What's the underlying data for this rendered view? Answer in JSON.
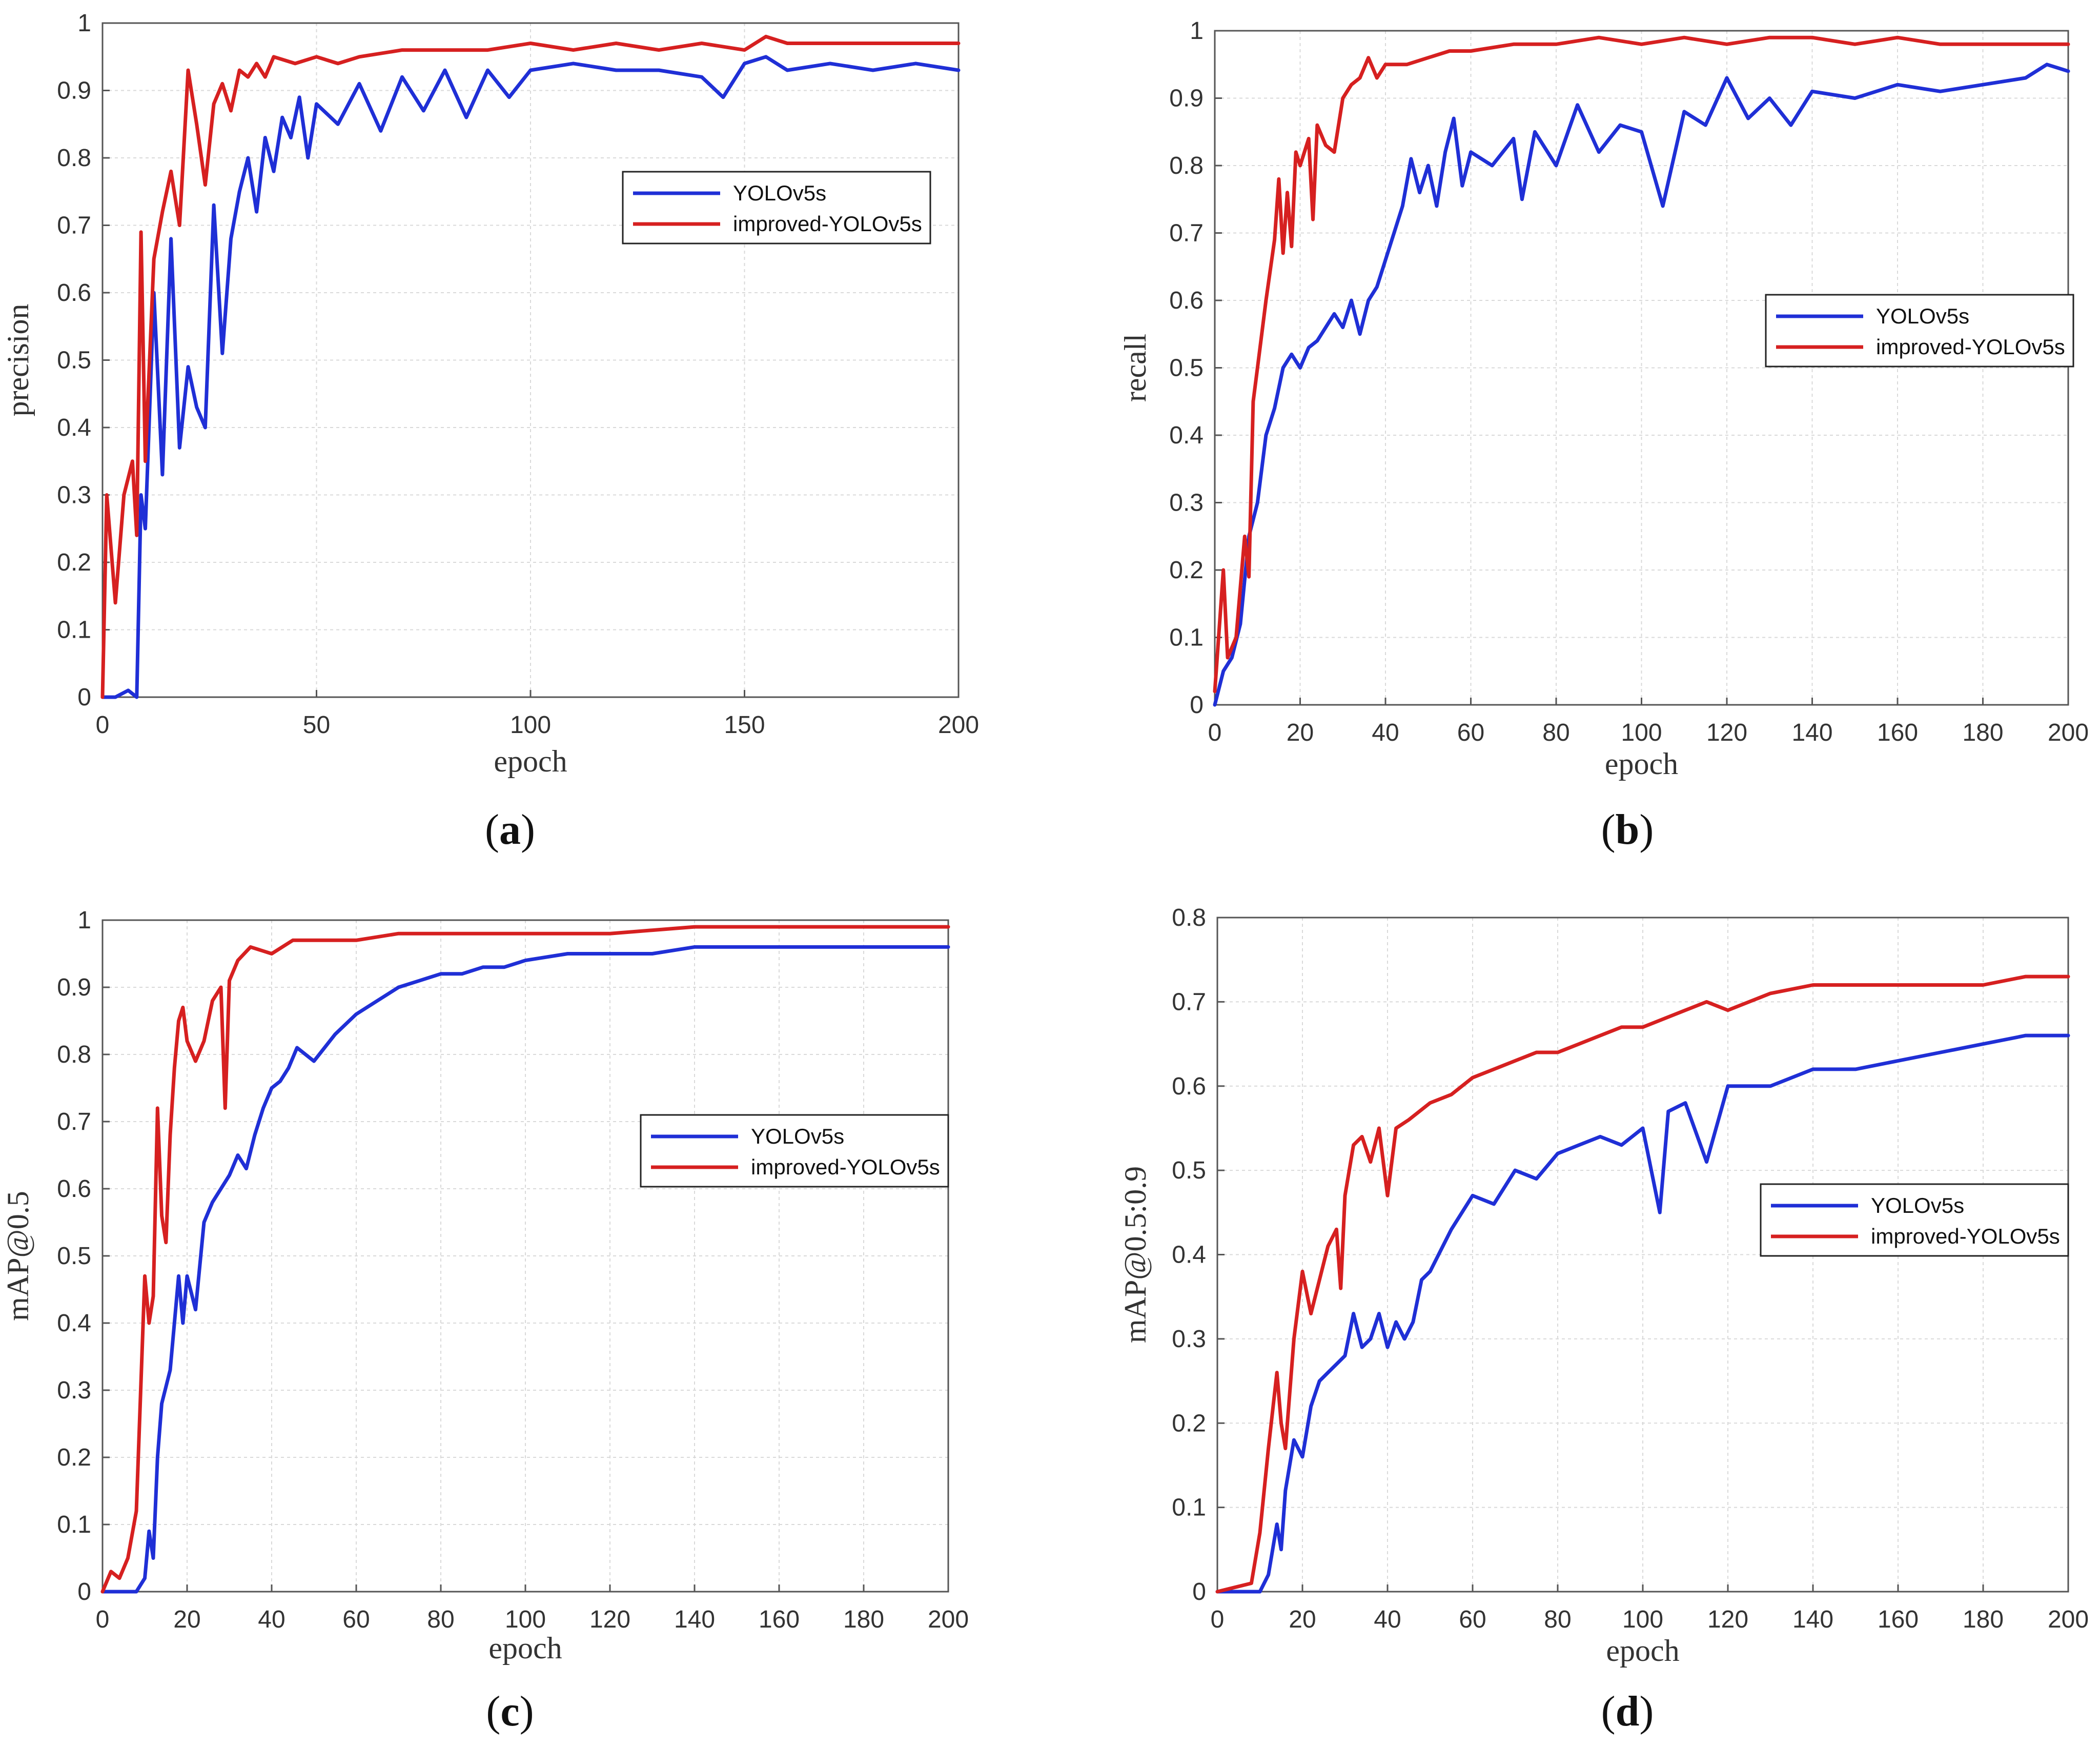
{
  "colors": {
    "yolov5s": "#1f2fd6",
    "improved": "#d62020",
    "grid": "#d9d9d9",
    "axis": "#555555"
  },
  "chart_data": [
    {
      "type": "line",
      "panel": "a",
      "caption": {
        "open": "(",
        "letter": "a",
        "close": ")"
      },
      "xlabel": "epoch",
      "ylabel": "precision",
      "xlim": [
        0,
        200
      ],
      "ylim": [
        0,
        1
      ],
      "xticks": [
        0,
        50,
        100,
        150,
        200
      ],
      "yticks": [
        0,
        0.1,
        0.2,
        0.3,
        0.4,
        0.5,
        0.6,
        0.7,
        0.8,
        0.9,
        1
      ],
      "ytick_labels": [
        "0",
        "0.1",
        "0.2",
        "0.3",
        "0.4",
        "0.5",
        "0.6",
        "0.7",
        "0.8",
        "0.9",
        "1"
      ],
      "legend_position": "middle-right",
      "series": [
        {
          "name": "YOLOv5s",
          "color_key": "yolov5s",
          "x": [
            0,
            3,
            6,
            8,
            9,
            10,
            12,
            14,
            16,
            18,
            20,
            22,
            24,
            26,
            28,
            30,
            32,
            34,
            36,
            38,
            40,
            42,
            44,
            46,
            48,
            50,
            55,
            60,
            65,
            70,
            75,
            80,
            85,
            90,
            95,
            100,
            110,
            120,
            130,
            140,
            145,
            150,
            155,
            160,
            170,
            180,
            190,
            200
          ],
          "values": [
            0,
            0,
            0.01,
            0,
            0.3,
            0.25,
            0.6,
            0.33,
            0.68,
            0.37,
            0.49,
            0.43,
            0.4,
            0.73,
            0.51,
            0.68,
            0.75,
            0.8,
            0.72,
            0.83,
            0.78,
            0.86,
            0.83,
            0.89,
            0.8,
            0.88,
            0.85,
            0.91,
            0.84,
            0.92,
            0.87,
            0.93,
            0.86,
            0.93,
            0.89,
            0.93,
            0.94,
            0.93,
            0.93,
            0.92,
            0.89,
            0.94,
            0.95,
            0.93,
            0.94,
            0.93,
            0.94,
            0.93
          ]
        },
        {
          "name": "improved-YOLOv5s",
          "color_key": "improved",
          "x": [
            0,
            1,
            3,
            5,
            7,
            8,
            9,
            10,
            12,
            14,
            16,
            18,
            20,
            22,
            24,
            26,
            28,
            30,
            32,
            34,
            36,
            38,
            40,
            45,
            50,
            55,
            60,
            70,
            80,
            90,
            100,
            110,
            120,
            130,
            140,
            150,
            155,
            160,
            170,
            180,
            190,
            200
          ],
          "values": [
            0,
            0.3,
            0.14,
            0.3,
            0.35,
            0.24,
            0.69,
            0.35,
            0.65,
            0.72,
            0.78,
            0.7,
            0.93,
            0.85,
            0.76,
            0.88,
            0.91,
            0.87,
            0.93,
            0.92,
            0.94,
            0.92,
            0.95,
            0.94,
            0.95,
            0.94,
            0.95,
            0.96,
            0.96,
            0.96,
            0.97,
            0.96,
            0.97,
            0.96,
            0.97,
            0.96,
            0.98,
            0.97,
            0.97,
            0.97,
            0.97,
            0.97
          ]
        }
      ]
    },
    {
      "type": "line",
      "panel": "b",
      "caption": {
        "open": "(",
        "letter": "b",
        "close": ")"
      },
      "xlabel": "epoch",
      "ylabel": "recall",
      "xlim": [
        0,
        200
      ],
      "ylim": [
        0,
        1
      ],
      "xticks": [
        0,
        20,
        40,
        60,
        80,
        100,
        120,
        140,
        160,
        180,
        200
      ],
      "yticks": [
        0,
        0.1,
        0.2,
        0.3,
        0.4,
        0.5,
        0.6,
        0.7,
        0.8,
        0.9,
        1
      ],
      "ytick_labels": [
        "0",
        "0.1",
        "0.2",
        "0.3",
        "0.4",
        "0.5",
        "0.6",
        "0.7",
        "0.8",
        "0.9",
        "1"
      ],
      "legend_position": "middle-right",
      "series": [
        {
          "name": "YOLOv5s",
          "color_key": "yolov5s",
          "x": [
            0,
            2,
            4,
            6,
            8,
            10,
            12,
            14,
            16,
            18,
            20,
            22,
            24,
            26,
            28,
            30,
            32,
            34,
            36,
            38,
            40,
            42,
            44,
            46,
            48,
            50,
            52,
            54,
            56,
            58,
            60,
            65,
            70,
            72,
            75,
            80,
            85,
            90,
            95,
            100,
            105,
            110,
            115,
            120,
            125,
            130,
            135,
            140,
            150,
            160,
            170,
            180,
            190,
            195,
            200
          ],
          "values": [
            0,
            0.05,
            0.07,
            0.12,
            0.25,
            0.3,
            0.4,
            0.44,
            0.5,
            0.52,
            0.5,
            0.53,
            0.54,
            0.56,
            0.58,
            0.56,
            0.6,
            0.55,
            0.6,
            0.62,
            0.66,
            0.7,
            0.74,
            0.81,
            0.76,
            0.8,
            0.74,
            0.82,
            0.87,
            0.77,
            0.82,
            0.8,
            0.84,
            0.75,
            0.85,
            0.8,
            0.89,
            0.82,
            0.86,
            0.85,
            0.74,
            0.88,
            0.86,
            0.93,
            0.87,
            0.9,
            0.86,
            0.91,
            0.9,
            0.92,
            0.91,
            0.92,
            0.93,
            0.95,
            0.94
          ]
        },
        {
          "name": "improved-YOLOv5s",
          "color_key": "improved",
          "x": [
            0,
            2,
            3,
            5,
            7,
            8,
            9,
            10,
            12,
            14,
            15,
            16,
            17,
            18,
            19,
            20,
            22,
            23,
            24,
            26,
            28,
            30,
            32,
            34,
            36,
            38,
            40,
            45,
            50,
            55,
            60,
            70,
            80,
            90,
            100,
            110,
            120,
            130,
            140,
            150,
            160,
            170,
            180,
            190,
            200
          ],
          "values": [
            0.02,
            0.2,
            0.07,
            0.1,
            0.25,
            0.19,
            0.45,
            0.5,
            0.6,
            0.69,
            0.78,
            0.67,
            0.76,
            0.68,
            0.82,
            0.8,
            0.84,
            0.72,
            0.86,
            0.83,
            0.82,
            0.9,
            0.92,
            0.93,
            0.96,
            0.93,
            0.95,
            0.95,
            0.96,
            0.97,
            0.97,
            0.98,
            0.98,
            0.99,
            0.98,
            0.99,
            0.98,
            0.99,
            0.99,
            0.98,
            0.99,
            0.98,
            0.98,
            0.98,
            0.98
          ]
        }
      ]
    },
    {
      "type": "line",
      "panel": "c",
      "caption": {
        "open": "(",
        "letter": "c",
        "close": ")"
      },
      "xlabel": "epoch",
      "ylabel": "mAP@0.5",
      "xlim": [
        0,
        200
      ],
      "ylim": [
        0,
        1
      ],
      "xticks": [
        0,
        20,
        40,
        60,
        80,
        100,
        120,
        140,
        160,
        180,
        200
      ],
      "yticks": [
        0,
        0.1,
        0.2,
        0.3,
        0.4,
        0.5,
        0.6,
        0.7,
        0.8,
        0.9,
        1
      ],
      "ytick_labels": [
        "0",
        "0.1",
        "0.2",
        "0.3",
        "0.4",
        "0.5",
        "0.6",
        "0.7",
        "0.8",
        "0.9",
        "1"
      ],
      "legend_position": "middle-right",
      "series": [
        {
          "name": "YOLOv5s",
          "color_key": "yolov5s",
          "x": [
            0,
            8,
            10,
            11,
            12,
            13,
            14,
            16,
            18,
            19,
            20,
            22,
            24,
            26,
            28,
            30,
            32,
            34,
            36,
            38,
            40,
            42,
            44,
            46,
            50,
            55,
            60,
            65,
            70,
            75,
            80,
            85,
            90,
            95,
            100,
            110,
            120,
            130,
            140,
            150,
            160,
            170,
            180,
            190,
            200
          ],
          "values": [
            0,
            0,
            0.02,
            0.09,
            0.05,
            0.2,
            0.28,
            0.33,
            0.47,
            0.4,
            0.47,
            0.42,
            0.55,
            0.58,
            0.6,
            0.62,
            0.65,
            0.63,
            0.68,
            0.72,
            0.75,
            0.76,
            0.78,
            0.81,
            0.79,
            0.83,
            0.86,
            0.88,
            0.9,
            0.91,
            0.92,
            0.92,
            0.93,
            0.93,
            0.94,
            0.95,
            0.95,
            0.95,
            0.96,
            0.96,
            0.96,
            0.96,
            0.96,
            0.96,
            0.96
          ]
        },
        {
          "name": "improved-YOLOv5s",
          "color_key": "improved",
          "x": [
            0,
            2,
            4,
            6,
            8,
            10,
            11,
            12,
            13,
            14,
            15,
            16,
            17,
            18,
            19,
            20,
            22,
            24,
            26,
            28,
            29,
            30,
            32,
            35,
            40,
            45,
            50,
            60,
            70,
            80,
            90,
            100,
            120,
            140,
            160,
            180,
            200
          ],
          "values": [
            0,
            0.03,
            0.02,
            0.05,
            0.12,
            0.47,
            0.4,
            0.44,
            0.72,
            0.56,
            0.52,
            0.68,
            0.78,
            0.85,
            0.87,
            0.82,
            0.79,
            0.82,
            0.88,
            0.9,
            0.72,
            0.91,
            0.94,
            0.96,
            0.95,
            0.97,
            0.97,
            0.97,
            0.98,
            0.98,
            0.98,
            0.98,
            0.98,
            0.99,
            0.99,
            0.99,
            0.99
          ]
        }
      ]
    },
    {
      "type": "line",
      "panel": "d",
      "caption": {
        "open": "(",
        "letter": "d",
        "close": ")"
      },
      "xlabel": "epoch",
      "ylabel": "mAP@0.5:0.9",
      "xlim": [
        0,
        200
      ],
      "ylim": [
        0,
        0.8
      ],
      "xticks": [
        0,
        20,
        40,
        60,
        80,
        100,
        120,
        140,
        160,
        180,
        200
      ],
      "yticks": [
        0,
        0.1,
        0.2,
        0.3,
        0.4,
        0.5,
        0.6,
        0.7,
        0.8
      ],
      "ytick_labels": [
        "0",
        "0.1",
        "0.2",
        "0.3",
        "0.4",
        "0.5",
        "0.6",
        "0.7",
        "0.8"
      ],
      "legend_position": "lower-right",
      "series": [
        {
          "name": "YOLOv5s",
          "color_key": "yolov5s",
          "x": [
            0,
            10,
            12,
            14,
            15,
            16,
            18,
            20,
            22,
            24,
            26,
            28,
            30,
            32,
            34,
            36,
            38,
            40,
            42,
            44,
            46,
            48,
            50,
            55,
            60,
            65,
            70,
            75,
            80,
            85,
            90,
            95,
            100,
            104,
            106,
            110,
            115,
            120,
            130,
            140,
            150,
            160,
            170,
            180,
            190,
            200
          ],
          "values": [
            0,
            0,
            0.02,
            0.08,
            0.05,
            0.12,
            0.18,
            0.16,
            0.22,
            0.25,
            0.26,
            0.27,
            0.28,
            0.33,
            0.29,
            0.3,
            0.33,
            0.29,
            0.32,
            0.3,
            0.32,
            0.37,
            0.38,
            0.43,
            0.47,
            0.46,
            0.5,
            0.49,
            0.52,
            0.53,
            0.54,
            0.53,
            0.55,
            0.45,
            0.57,
            0.58,
            0.51,
            0.6,
            0.6,
            0.62,
            0.62,
            0.63,
            0.64,
            0.65,
            0.66,
            0.66
          ]
        },
        {
          "name": "improved-YOLOv5s",
          "color_key": "improved",
          "x": [
            0,
            8,
            10,
            12,
            14,
            15,
            16,
            18,
            20,
            22,
            24,
            26,
            28,
            29,
            30,
            32,
            34,
            36,
            38,
            40,
            42,
            45,
            50,
            55,
            60,
            65,
            70,
            75,
            80,
            85,
            90,
            95,
            100,
            110,
            115,
            120,
            130,
            140,
            150,
            160,
            170,
            180,
            190,
            200
          ],
          "values": [
            0,
            0.01,
            0.07,
            0.17,
            0.26,
            0.2,
            0.17,
            0.3,
            0.38,
            0.33,
            0.37,
            0.41,
            0.43,
            0.36,
            0.47,
            0.53,
            0.54,
            0.51,
            0.55,
            0.47,
            0.55,
            0.56,
            0.58,
            0.59,
            0.61,
            0.62,
            0.63,
            0.64,
            0.64,
            0.65,
            0.66,
            0.67,
            0.67,
            0.69,
            0.7,
            0.69,
            0.71,
            0.72,
            0.72,
            0.72,
            0.72,
            0.72,
            0.73,
            0.73
          ]
        }
      ]
    }
  ]
}
